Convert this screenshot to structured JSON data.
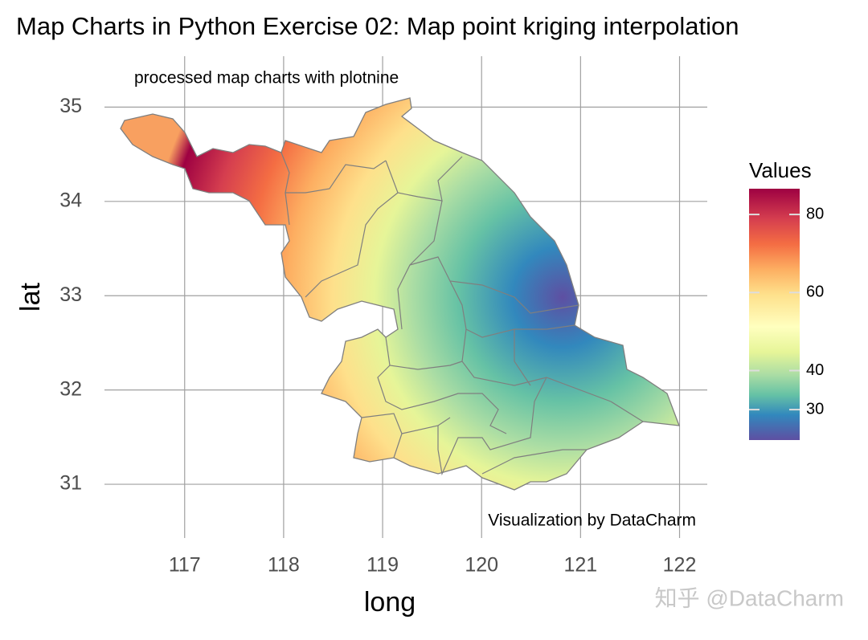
{
  "chart_data": {
    "type": "map",
    "title": "Map Charts in Python Exercise 02: Map point kriging interpolation",
    "subtitle": "processed map charts with plotnine",
    "caption": "Visualization by DataCharm",
    "x_label": "long",
    "y_label": "lat",
    "xlim": [
      116.19,
      122.28
    ],
    "ylim": [
      30.43,
      35.54
    ],
    "xticks": [
      117,
      118,
      119,
      120,
      121,
      122
    ],
    "yticks": [
      31,
      32,
      33,
      34,
      35
    ],
    "grid": true,
    "legend": {
      "title": "Values",
      "lim": [
        22.2,
        86.6
      ],
      "ticks": [
        30,
        40,
        60,
        80
      ]
    }
  },
  "watermark": "知乎 @DataCharm"
}
